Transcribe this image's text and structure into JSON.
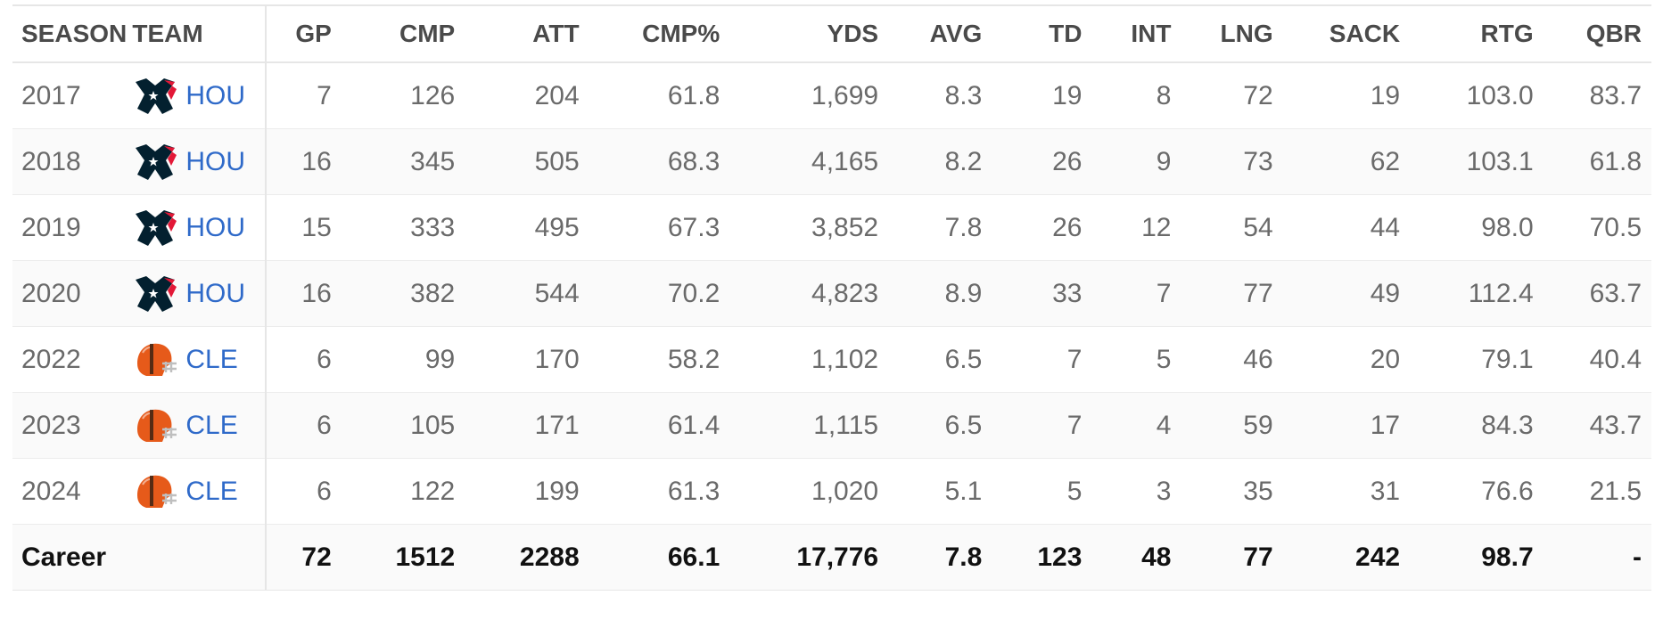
{
  "colors": {
    "link": "#2f6ac9",
    "texans_navy": "#03202f",
    "texans_red": "#e31837",
    "browns_orange": "#e65a1a"
  },
  "headers": {
    "season": "SEASON",
    "team": "TEAM",
    "gp": "GP",
    "cmp": "CMP",
    "att": "ATT",
    "cmp_pct": "CMP%",
    "yds": "YDS",
    "avg": "AVG",
    "td": "TD",
    "int": "INT",
    "lng": "LNG",
    "sack": "SACK",
    "rtg": "RTG",
    "qbr": "QBR"
  },
  "rows": [
    {
      "season": "2017",
      "team": "HOU",
      "logo": "texans-logo-icon",
      "gp": "7",
      "cmp": "126",
      "att": "204",
      "cmp_pct": "61.8",
      "yds": "1,699",
      "avg": "8.3",
      "td": "19",
      "int": "8",
      "lng": "72",
      "sack": "19",
      "rtg": "103.0",
      "qbr": "83.7"
    },
    {
      "season": "2018",
      "team": "HOU",
      "logo": "texans-logo-icon",
      "gp": "16",
      "cmp": "345",
      "att": "505",
      "cmp_pct": "68.3",
      "yds": "4,165",
      "avg": "8.2",
      "td": "26",
      "int": "9",
      "lng": "73",
      "sack": "62",
      "rtg": "103.1",
      "qbr": "61.8"
    },
    {
      "season": "2019",
      "team": "HOU",
      "logo": "texans-logo-icon",
      "gp": "15",
      "cmp": "333",
      "att": "495",
      "cmp_pct": "67.3",
      "yds": "3,852",
      "avg": "7.8",
      "td": "26",
      "int": "12",
      "lng": "54",
      "sack": "44",
      "rtg": "98.0",
      "qbr": "70.5"
    },
    {
      "season": "2020",
      "team": "HOU",
      "logo": "texans-logo-icon",
      "gp": "16",
      "cmp": "382",
      "att": "544",
      "cmp_pct": "70.2",
      "yds": "4,823",
      "avg": "8.9",
      "td": "33",
      "int": "7",
      "lng": "77",
      "sack": "49",
      "rtg": "112.4",
      "qbr": "63.7"
    },
    {
      "season": "2022",
      "team": "CLE",
      "logo": "browns-helmet-icon",
      "gp": "6",
      "cmp": "99",
      "att": "170",
      "cmp_pct": "58.2",
      "yds": "1,102",
      "avg": "6.5",
      "td": "7",
      "int": "5",
      "lng": "46",
      "sack": "20",
      "rtg": "79.1",
      "qbr": "40.4"
    },
    {
      "season": "2023",
      "team": "CLE",
      "logo": "browns-helmet-icon",
      "gp": "6",
      "cmp": "105",
      "att": "171",
      "cmp_pct": "61.4",
      "yds": "1,115",
      "avg": "6.5",
      "td": "7",
      "int": "4",
      "lng": "59",
      "sack": "17",
      "rtg": "84.3",
      "qbr": "43.7"
    },
    {
      "season": "2024",
      "team": "CLE",
      "logo": "browns-helmet-icon",
      "gp": "6",
      "cmp": "122",
      "att": "199",
      "cmp_pct": "61.3",
      "yds": "1,020",
      "avg": "5.1",
      "td": "5",
      "int": "3",
      "lng": "35",
      "sack": "31",
      "rtg": "76.6",
      "qbr": "21.5"
    }
  ],
  "career": {
    "label": "Career",
    "gp": "72",
    "cmp": "1512",
    "att": "2288",
    "cmp_pct": "66.1",
    "yds": "17,776",
    "avg": "7.8",
    "td": "123",
    "int": "48",
    "lng": "77",
    "sack": "242",
    "rtg": "98.7",
    "qbr": "-"
  }
}
